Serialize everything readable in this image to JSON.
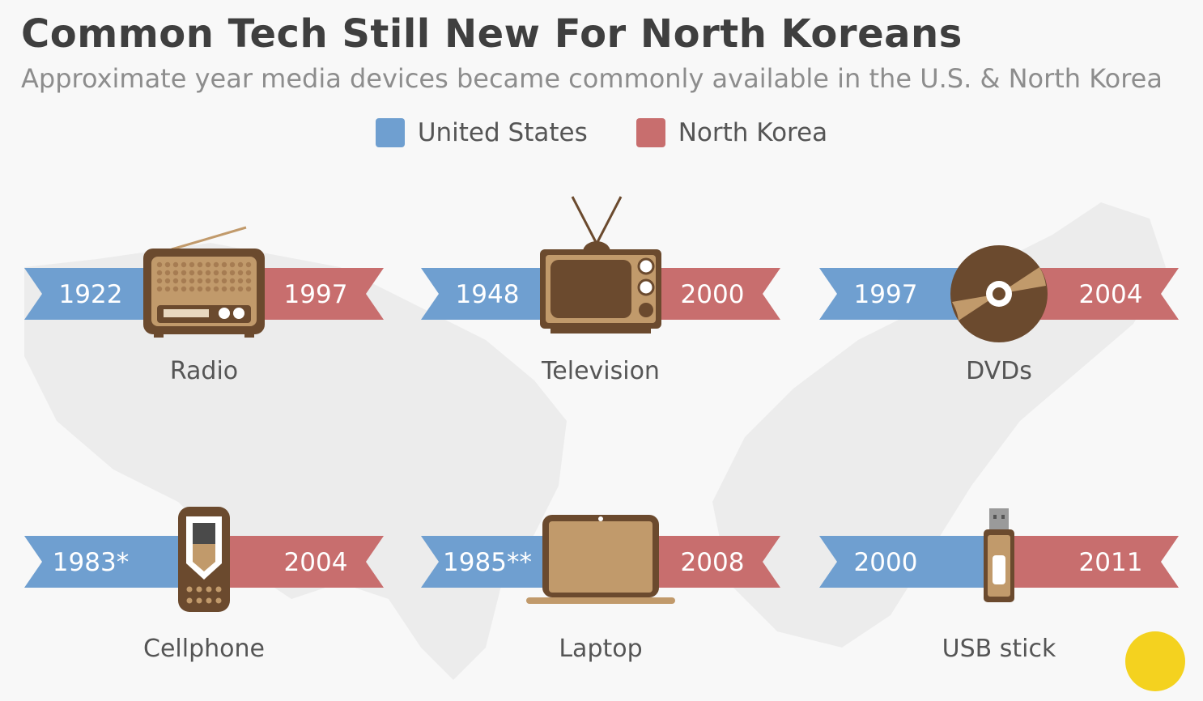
{
  "title": "Common Tech Still New For North Koreans",
  "subtitle": "Approximate year media devices became commonly available in the U.S. & North Korea",
  "colors": {
    "us": "#6f9fd0",
    "nk": "#c86e6e",
    "icon_dark": "#6b4a2e",
    "icon_light": "#c19a6b",
    "label": "#555555",
    "map": "#ececec"
  },
  "chart_data": {
    "type": "table",
    "title": "Common Tech Still New For North Koreans",
    "subtitle": "Approximate year media devices became commonly available in the U.S. & North Korea",
    "legend": {
      "placement": "top-center",
      "entries": [
        "United States",
        "North Korea"
      ]
    },
    "rows": [
      {
        "device": "Radio",
        "icon": "radio-icon",
        "us": "1922",
        "nk": "1997"
      },
      {
        "device": "Television",
        "icon": "television-icon",
        "us": "1948",
        "nk": "2000"
      },
      {
        "device": "DVDs",
        "icon": "dvd-icon",
        "us": "1997",
        "nk": "2004"
      },
      {
        "device": "Cellphone",
        "icon": "cellphone-icon",
        "us": "1983*",
        "nk": "2004"
      },
      {
        "device": "Laptop",
        "icon": "laptop-icon",
        "us": "1985**",
        "nk": "2008"
      },
      {
        "device": "USB stick",
        "icon": "usb-stick-icon",
        "us": "2000",
        "nk": "2011"
      }
    ]
  }
}
